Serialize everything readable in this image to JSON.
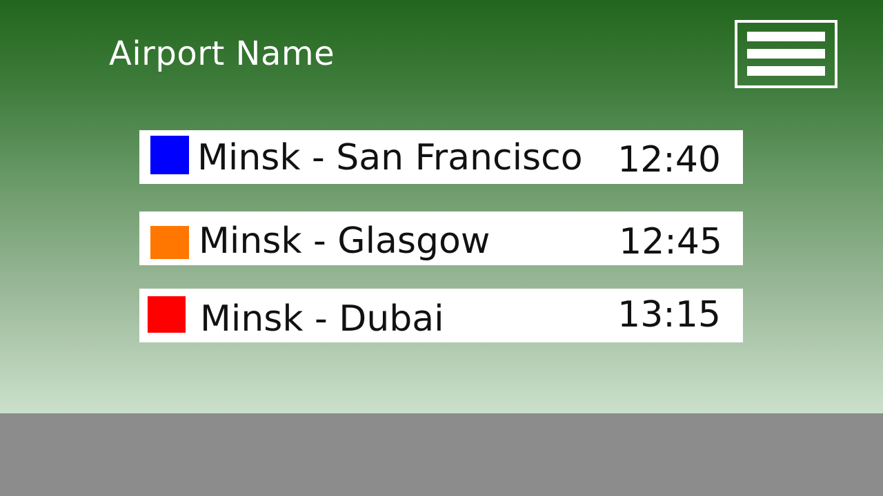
{
  "header": {
    "title": "Airport Name",
    "menu_icon": "hamburger-menu-icon"
  },
  "flights": [
    {
      "route": "Minsk - San Francisco",
      "time": "12:40",
      "color": "#0000ff"
    },
    {
      "route": "Minsk - Glasgow",
      "time": "12:45",
      "color": "#ff7700"
    },
    {
      "route": "Minsk - Dubai",
      "time": "13:15",
      "color": "#ff0000"
    }
  ],
  "colors": {
    "sky_top": "#22661d",
    "sky_bottom": "#cbe0cb",
    "ground": "#8c8c8c",
    "card_background": "#ffffff"
  }
}
